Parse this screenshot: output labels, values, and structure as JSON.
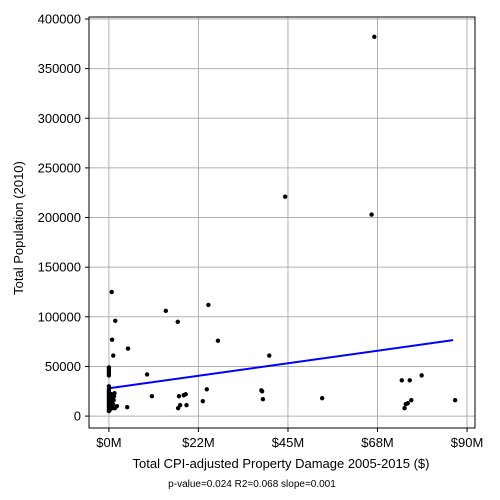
{
  "chart_data": {
    "type": "scatter",
    "title": "",
    "xlabel": "Total CPI-adjusted Property Damage 2005-2015 ($)",
    "ylabel": "Total Population (2010)",
    "xlim": [
      -5000000,
      92000000
    ],
    "ylim": [
      -12000,
      402000
    ],
    "x_ticks": [
      0,
      22500000,
      45000000,
      67500000,
      90000000
    ],
    "x_tick_labels": [
      "$0M",
      "$22M",
      "$45M",
      "$68M",
      "$90M"
    ],
    "y_ticks": [
      0,
      50000,
      100000,
      150000,
      200000,
      250000,
      300000,
      350000,
      400000
    ],
    "y_tick_labels": [
      "0",
      "50000",
      "100000",
      "150000",
      "200000",
      "250000",
      "300000",
      "350000",
      "400000"
    ],
    "grid": true,
    "point_color": "#000000",
    "fit_line_color": "#0000ff",
    "fit_line": {
      "x": [
        0,
        86500000
      ],
      "y": [
        28000,
        76500
      ]
    },
    "stats_text": "p-value=0.024   R2=0.068   slope=0.001",
    "points": [
      [
        0,
        5000
      ],
      [
        0,
        7000
      ],
      [
        0,
        9000
      ],
      [
        0,
        11000
      ],
      [
        0,
        13000
      ],
      [
        0,
        15000
      ],
      [
        0,
        17000
      ],
      [
        0,
        19000
      ],
      [
        0,
        21000
      ],
      [
        0,
        23000
      ],
      [
        0,
        25000
      ],
      [
        0,
        27000
      ],
      [
        0,
        30000
      ],
      [
        0,
        41000
      ],
      [
        0,
        43000
      ],
      [
        0,
        45000
      ],
      [
        0,
        47000
      ],
      [
        0,
        49000
      ],
      [
        200000,
        6000
      ],
      [
        300000,
        10000
      ],
      [
        400000,
        14000
      ],
      [
        500000,
        18000
      ],
      [
        600000,
        22000
      ],
      [
        700000,
        125000
      ],
      [
        800000,
        77000
      ],
      [
        900000,
        8000
      ],
      [
        1000000,
        12000
      ],
      [
        1100000,
        61000
      ],
      [
        1200000,
        16000
      ],
      [
        1300000,
        20000
      ],
      [
        1400000,
        23000
      ],
      [
        1500000,
        8000
      ],
      [
        1600000,
        96000
      ],
      [
        2000000,
        10000
      ],
      [
        4600000,
        9000
      ],
      [
        4800000,
        68000
      ],
      [
        9600000,
        42000
      ],
      [
        10800000,
        20000
      ],
      [
        14300000,
        106000
      ],
      [
        17300000,
        95000
      ],
      [
        17400000,
        8000
      ],
      [
        17600000,
        20000
      ],
      [
        17900000,
        11000
      ],
      [
        18800000,
        21000
      ],
      [
        19300000,
        22000
      ],
      [
        19500000,
        11000
      ],
      [
        23600000,
        15000
      ],
      [
        24600000,
        27000
      ],
      [
        25000000,
        112000
      ],
      [
        27400000,
        76000
      ],
      [
        38300000,
        26000
      ],
      [
        38500000,
        25000
      ],
      [
        38700000,
        17000
      ],
      [
        40300000,
        61000
      ],
      [
        44300000,
        221000
      ],
      [
        53600000,
        18000
      ],
      [
        66000000,
        203000
      ],
      [
        66700000,
        382000
      ],
      [
        73600000,
        36000
      ],
      [
        74300000,
        8000
      ],
      [
        74600000,
        12000
      ],
      [
        75100000,
        13000
      ],
      [
        75600000,
        36000
      ],
      [
        76000000,
        16000
      ],
      [
        78600000,
        41000
      ],
      [
        87000000,
        16000
      ]
    ]
  }
}
